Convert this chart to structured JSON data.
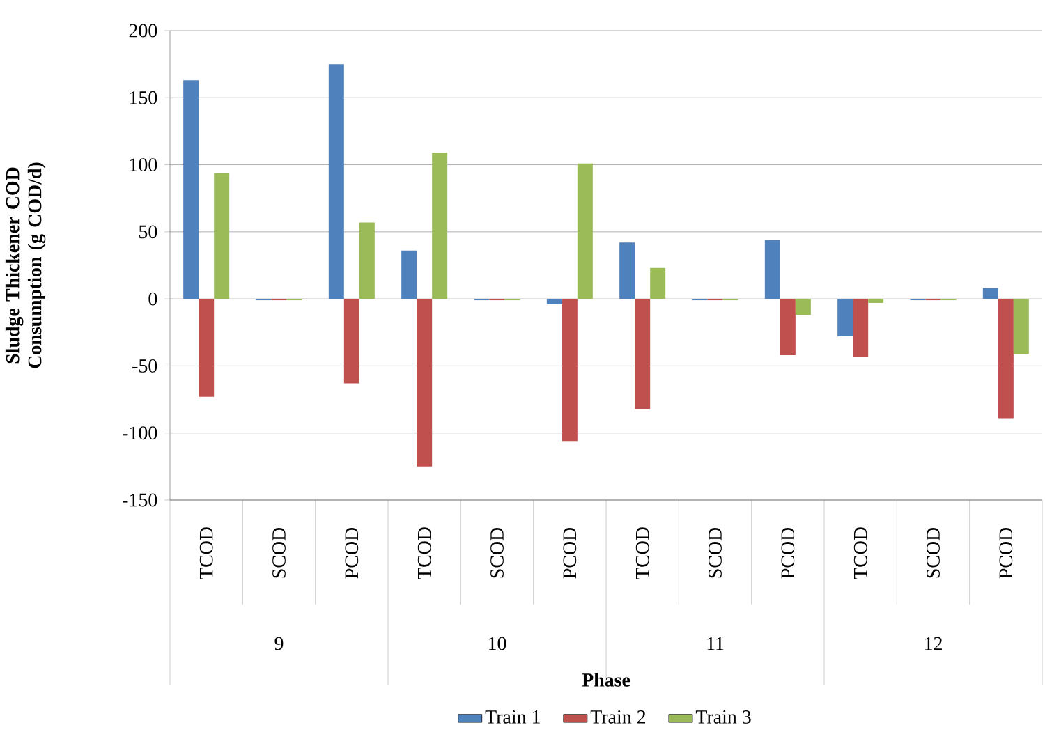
{
  "chart_data": {
    "type": "bar",
    "ylabel": "Sludge Thickener COD Consumption (g COD/d)",
    "xlabel": "Phase",
    "categories": [
      "TCOD",
      "SCOD",
      "PCOD",
      "TCOD",
      "SCOD",
      "PCOD",
      "TCOD",
      "SCOD",
      "PCOD",
      "TCOD",
      "SCOD",
      "PCOD"
    ],
    "annotations": [
      "9",
      "10",
      "11",
      "12"
    ],
    "series": [
      {
        "name": "Train 1",
        "color": "#4f81bd",
        "values": [
          163,
          -1,
          175,
          36,
          -1,
          -4,
          42,
          -1,
          44,
          -28,
          -1,
          8
        ]
      },
      {
        "name": "Train 2",
        "color": "#c0504d",
        "values": [
          -73,
          -1,
          -63,
          -125,
          -1,
          -106,
          -82,
          -1,
          -42,
          -43,
          -1,
          -89
        ]
      },
      {
        "name": "Train 3",
        "color": "#9bbb59",
        "values": [
          94,
          -1,
          57,
          109,
          -1,
          101,
          23,
          -1,
          -12,
          -3,
          -1,
          -41
        ]
      }
    ],
    "ylim": [
      -150,
      200
    ],
    "yticks": [
      -150,
      -100,
      -50,
      0,
      50,
      100,
      150,
      200
    ],
    "grid": "y",
    "legend": "bottom"
  }
}
